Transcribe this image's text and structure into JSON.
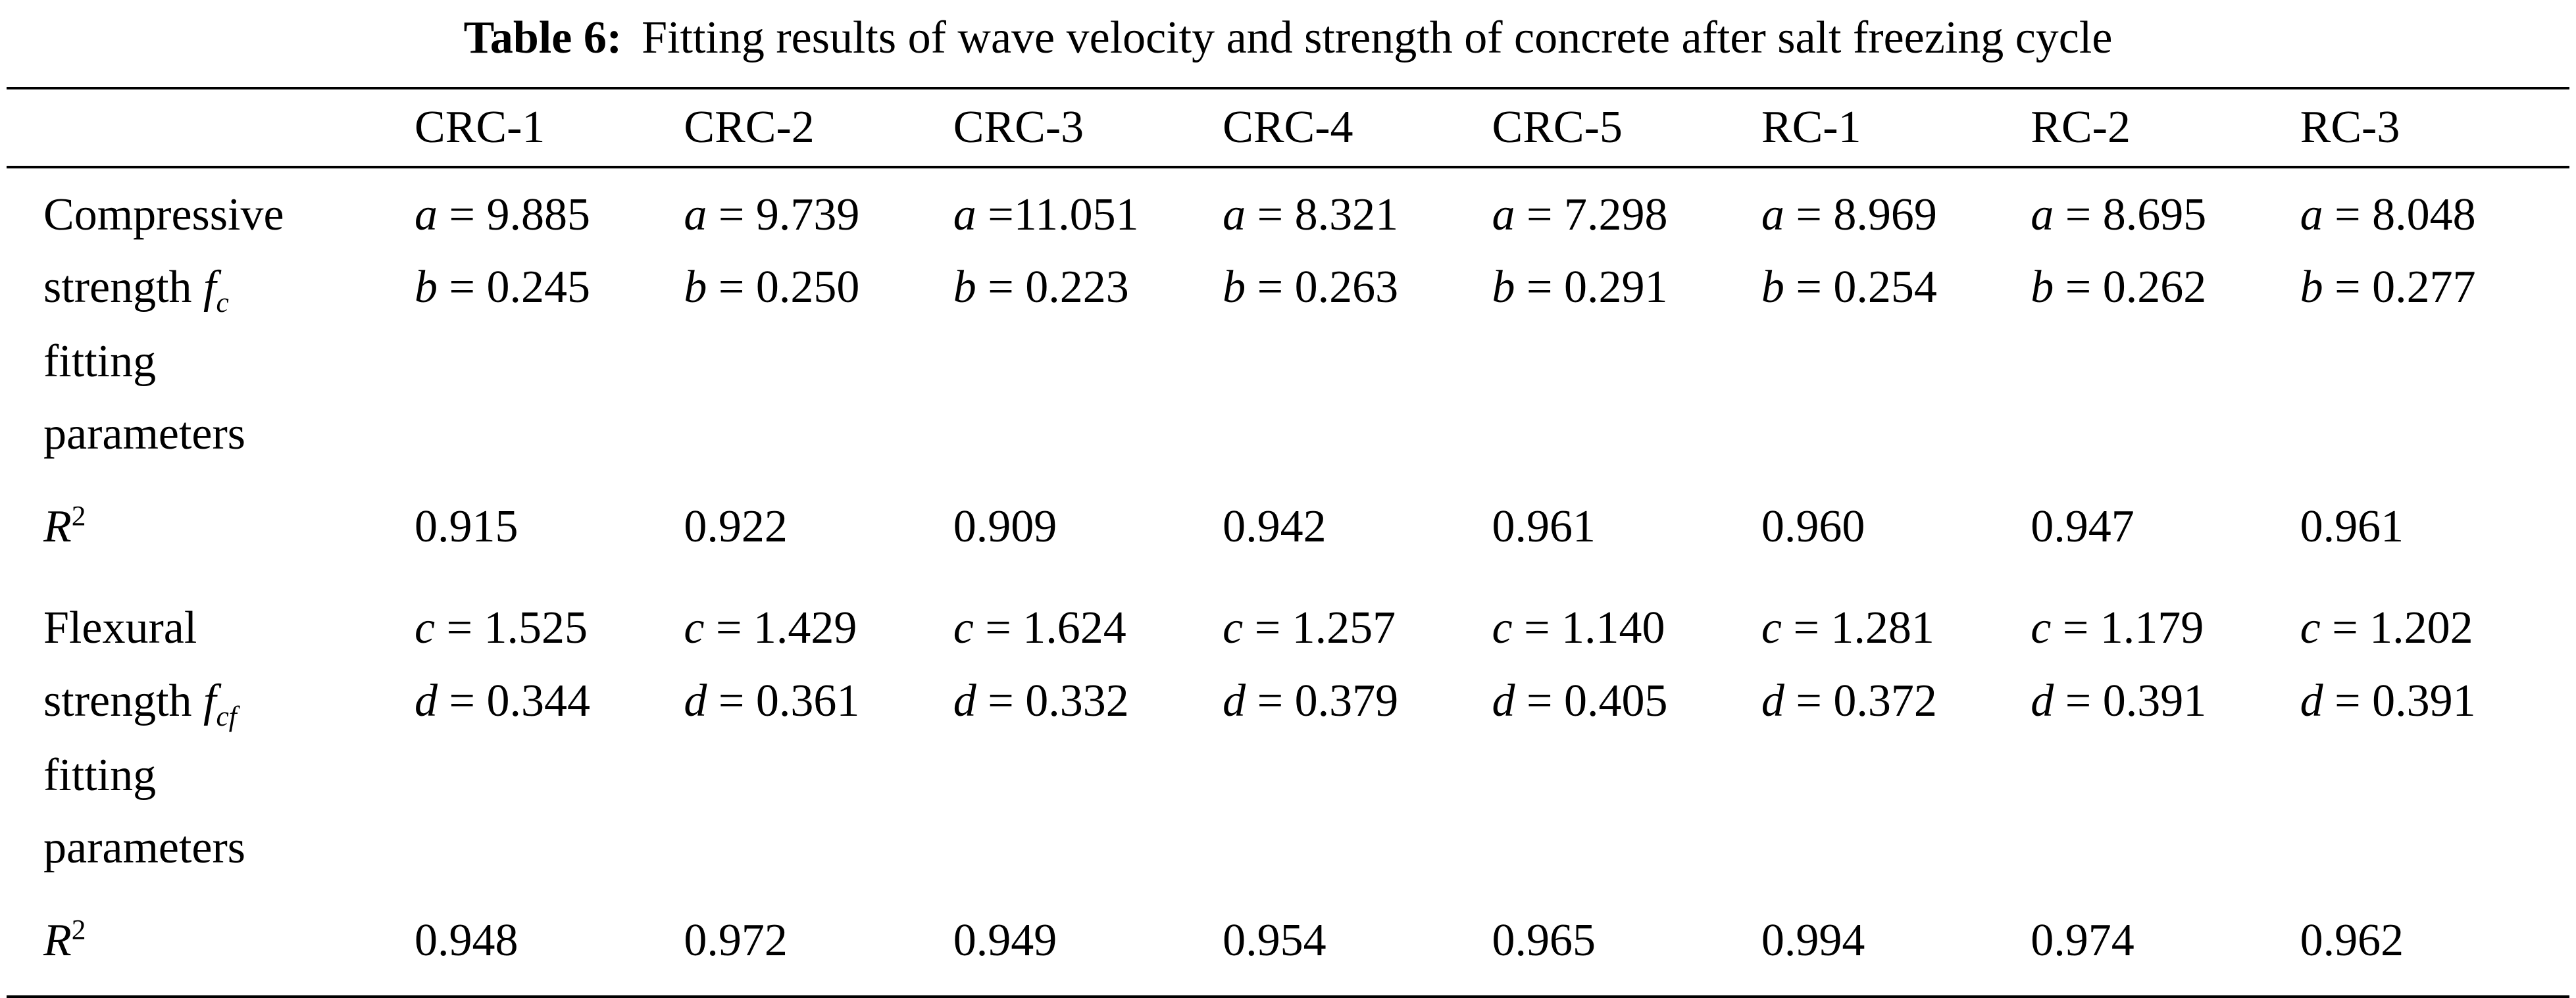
{
  "caption": {
    "label": "Table 6:",
    "text": "Fitting results of wave velocity and strength of concrete after salt freezing cycle"
  },
  "table": {
    "header": [
      "CRC-1",
      "CRC-2",
      "CRC-3",
      "CRC-4",
      "CRC-5",
      "RC-1",
      "RC-2",
      "RC-3"
    ],
    "compressive": {
      "label": {
        "line1": "Compressive",
        "line2_pre": "strength ",
        "line2_var": "f",
        "line2_sub": "c",
        "line3": "fitting",
        "line4": "parameters"
      },
      "cells": [
        {
          "a": "a = 9.885",
          "b": "b = 0.245"
        },
        {
          "a": "a = 9.739",
          "b": "b = 0.250"
        },
        {
          "a": "a =11.051",
          "b": "b = 0.223"
        },
        {
          "a": "a = 8.321",
          "b": "b = 0.263"
        },
        {
          "a": "a = 7.298",
          "b": "b = 0.291"
        },
        {
          "a": "a = 8.969",
          "b": "b = 0.254"
        },
        {
          "a": "a = 8.695",
          "b": "b = 0.262"
        },
        {
          "a": "a = 8.048",
          "b": "b = 0.277"
        }
      ]
    },
    "r2_compressive": {
      "label_var": "R",
      "label_sup": "2",
      "values": [
        "0.915",
        "0.922",
        "0.909",
        "0.942",
        "0.961",
        "0.960",
        "0.947",
        "0.961"
      ]
    },
    "flexural": {
      "label": {
        "line1": "Flexural",
        "line2_pre": "strength ",
        "line2_var": "f",
        "line2_sub": "cf",
        "line3": "fitting",
        "line4": "parameters"
      },
      "cells": [
        {
          "a": "c = 1.525",
          "b": "d = 0.344"
        },
        {
          "a": "c = 1.429",
          "b": "d = 0.361"
        },
        {
          "a": "c = 1.624",
          "b": "d = 0.332"
        },
        {
          "a": "c = 1.257",
          "b": "d = 0.379"
        },
        {
          "a": "c = 1.140",
          "b": "d = 0.405"
        },
        {
          "a": "c = 1.281",
          "b": "d = 0.372"
        },
        {
          "a": "c = 1.179",
          "b": "d = 0.391"
        },
        {
          "a": "c = 1.202",
          "b": "d = 0.391"
        }
      ]
    },
    "r2_flexural": {
      "label_var": "R",
      "label_sup": "2",
      "values": [
        "0.948",
        "0.972",
        "0.949",
        "0.954",
        "0.965",
        "0.994",
        "0.974",
        "0.962"
      ]
    }
  }
}
